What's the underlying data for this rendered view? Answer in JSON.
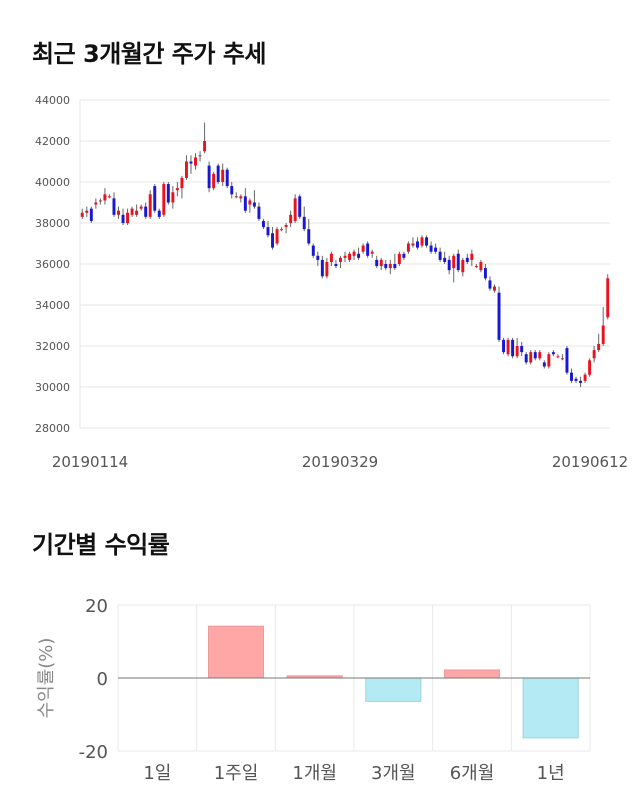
{
  "sections": {
    "stock_title": "최근 3개월간 주가 추세",
    "return_title": "기간별 수익률"
  },
  "chart_data": [
    {
      "type": "candlestick",
      "title": "최근 3개월간 주가 추세",
      "ylim": [
        28000,
        44000
      ],
      "yticks": [
        28000,
        30000,
        32000,
        34000,
        36000,
        38000,
        40000,
        42000,
        44000
      ],
      "xtick_labels": [
        "20190114",
        "20190329",
        "20190612"
      ],
      "grid": true,
      "colors": {
        "up": "#e8131e",
        "down": "#1818d2"
      },
      "candles": [
        [
          38300,
          38700,
          38200,
          38500
        ],
        [
          38500,
          38800,
          38300,
          38600
        ],
        [
          38700,
          38800,
          38000,
          38100
        ],
        [
          38900,
          39200,
          38700,
          39000
        ],
        [
          39100,
          39200,
          38900,
          39100
        ],
        [
          39100,
          39700,
          38900,
          39400
        ],
        [
          39300,
          39400,
          39200,
          39300
        ],
        [
          39200,
          39500,
          38300,
          38400
        ],
        [
          38400,
          38800,
          38200,
          38600
        ],
        [
          38400,
          38700,
          37900,
          38000
        ],
        [
          38000,
          38700,
          37900,
          38500
        ],
        [
          38400,
          38800,
          38300,
          38700
        ],
        [
          38400,
          38900,
          38300,
          38600
        ],
        [
          38700,
          38900,
          38600,
          38800
        ],
        [
          38800,
          39000,
          38200,
          38300
        ],
        [
          38300,
          39600,
          38200,
          39400
        ],
        [
          39800,
          39900,
          38500,
          38600
        ],
        [
          38600,
          38700,
          38200,
          38300
        ],
        [
          38400,
          40000,
          38300,
          39900
        ],
        [
          39900,
          40000,
          38900,
          39000
        ],
        [
          39000,
          39800,
          38700,
          39500
        ],
        [
          39600,
          40000,
          39300,
          39700
        ],
        [
          39700,
          40300,
          39200,
          40200
        ],
        [
          40200,
          41300,
          40100,
          41000
        ],
        [
          41000,
          41300,
          40400,
          40900
        ],
        [
          40800,
          41400,
          40600,
          41200
        ],
        [
          41300,
          41500,
          41000,
          41300
        ],
        [
          41500,
          42900,
          41400,
          42000
        ],
        [
          40800,
          41000,
          39500,
          39700
        ],
        [
          39700,
          40500,
          39600,
          40400
        ],
        [
          40800,
          40900,
          39900,
          40000
        ],
        [
          40000,
          40900,
          39800,
          40600
        ],
        [
          40600,
          40700,
          39700,
          39800
        ],
        [
          39800,
          40000,
          39200,
          39400
        ],
        [
          39300,
          39500,
          39200,
          39300
        ],
        [
          39200,
          39400,
          39000,
          39300
        ],
        [
          39300,
          39700,
          38500,
          38600
        ],
        [
          38900,
          39200,
          38500,
          39100
        ],
        [
          39000,
          39600,
          38700,
          38800
        ],
        [
          38800,
          39000,
          38100,
          38200
        ],
        [
          38100,
          38200,
          37700,
          37800
        ],
        [
          37800,
          38100,
          37300,
          37400
        ],
        [
          37500,
          37800,
          36700,
          36800
        ],
        [
          37000,
          37800,
          36900,
          37700
        ],
        [
          37700,
          37800,
          37600,
          37700
        ],
        [
          37800,
          38000,
          37500,
          37900
        ],
        [
          38000,
          38600,
          37800,
          38400
        ],
        [
          38100,
          39400,
          38000,
          39200
        ],
        [
          39300,
          39400,
          38200,
          38300
        ],
        [
          38300,
          38800,
          37600,
          37700
        ],
        [
          37700,
          38200,
          36900,
          37000
        ],
        [
          36900,
          37000,
          36300,
          36400
        ],
        [
          36400,
          36600,
          35900,
          36200
        ],
        [
          36200,
          36400,
          35300,
          35400
        ],
        [
          35400,
          36300,
          35300,
          36100
        ],
        [
          36100,
          36600,
          35900,
          36500
        ],
        [
          36000,
          36200,
          35800,
          35900
        ],
        [
          36100,
          36400,
          35800,
          36300
        ],
        [
          36300,
          36600,
          36100,
          36400
        ],
        [
          36200,
          36600,
          36100,
          36500
        ],
        [
          36400,
          36700,
          36200,
          36600
        ],
        [
          36500,
          36800,
          36200,
          36300
        ],
        [
          36600,
          37000,
          36500,
          36900
        ],
        [
          37000,
          37100,
          36300,
          36400
        ],
        [
          36500,
          36700,
          36300,
          36600
        ],
        [
          36200,
          36400,
          35800,
          35900
        ],
        [
          35900,
          36300,
          35700,
          36200
        ],
        [
          36000,
          36200,
          35700,
          35800
        ],
        [
          35800,
          36200,
          35500,
          36000
        ],
        [
          36000,
          36500,
          35700,
          35800
        ],
        [
          36000,
          36600,
          35900,
          36500
        ],
        [
          36500,
          36600,
          36200,
          36300
        ],
        [
          36600,
          37100,
          36500,
          37000
        ],
        [
          36900,
          37300,
          36800,
          37000
        ],
        [
          37100,
          37300,
          36700,
          36800
        ],
        [
          36900,
          37400,
          36800,
          37300
        ],
        [
          37300,
          37400,
          36800,
          36900
        ],
        [
          36900,
          37100,
          36500,
          36600
        ],
        [
          36800,
          37000,
          36500,
          36600
        ],
        [
          36600,
          36800,
          36100,
          36200
        ],
        [
          36300,
          36600,
          36000,
          36100
        ],
        [
          36200,
          36400,
          35500,
          35700
        ],
        [
          35800,
          36500,
          35100,
          36400
        ],
        [
          36500,
          36700,
          35600,
          35700
        ],
        [
          35600,
          36300,
          35400,
          36200
        ],
        [
          36300,
          36500,
          36000,
          36100
        ],
        [
          36200,
          36700,
          35900,
          36500
        ],
        [
          35900,
          36000,
          35800,
          35900
        ],
        [
          35700,
          36200,
          35600,
          36100
        ],
        [
          35800,
          36000,
          35200,
          35300
        ],
        [
          35200,
          35400,
          34700,
          34800
        ],
        [
          34700,
          35000,
          34600,
          34900
        ],
        [
          34600,
          34900,
          32200,
          32300
        ],
        [
          32300,
          32400,
          31600,
          31700
        ],
        [
          31600,
          32400,
          31500,
          32300
        ],
        [
          32300,
          32400,
          31400,
          31500
        ],
        [
          31500,
          32400,
          31400,
          32000
        ],
        [
          32000,
          32200,
          31500,
          31700
        ],
        [
          31600,
          31700,
          31100,
          31200
        ],
        [
          31200,
          31800,
          31100,
          31700
        ],
        [
          31700,
          31800,
          31300,
          31400
        ],
        [
          31400,
          31800,
          31300,
          31700
        ],
        [
          31200,
          31300,
          30900,
          31000
        ],
        [
          31000,
          31700,
          30900,
          31600
        ],
        [
          31700,
          31800,
          31500,
          31600
        ],
        [
          31500,
          31600,
          31400,
          31500
        ],
        [
          31400,
          31600,
          31300,
          31400
        ],
        [
          31900,
          32000,
          30600,
          30700
        ],
        [
          30700,
          30900,
          30200,
          30300
        ],
        [
          30400,
          30500,
          30200,
          30300
        ],
        [
          30300,
          30500,
          30000,
          30200
        ],
        [
          30300,
          30700,
          30200,
          30600
        ],
        [
          30600,
          31400,
          30500,
          31300
        ],
        [
          31400,
          32000,
          31200,
          31800
        ],
        [
          31800,
          32600,
          31700,
          32100
        ],
        [
          32100,
          33900,
          32000,
          33000
        ],
        [
          33400,
          35500,
          33300,
          35300
        ]
      ]
    },
    {
      "type": "bar",
      "categories": [
        "1일",
        "1주일",
        "1개월",
        "3개월",
        "6개월",
        "1년"
      ],
      "values": [
        0,
        14.2,
        0.6,
        -6.4,
        2.2,
        -16.4
      ],
      "ylabel": "수익률(%)",
      "ylim": [
        -20,
        20
      ],
      "yticks": [
        -20,
        0,
        20
      ],
      "grid": true,
      "colors": {
        "positive_fill": "#ffa7a7",
        "positive_stroke": "#e99a9a",
        "negative_fill": "#b3eaf4",
        "negative_stroke": "#9cd4dd"
      }
    }
  ]
}
